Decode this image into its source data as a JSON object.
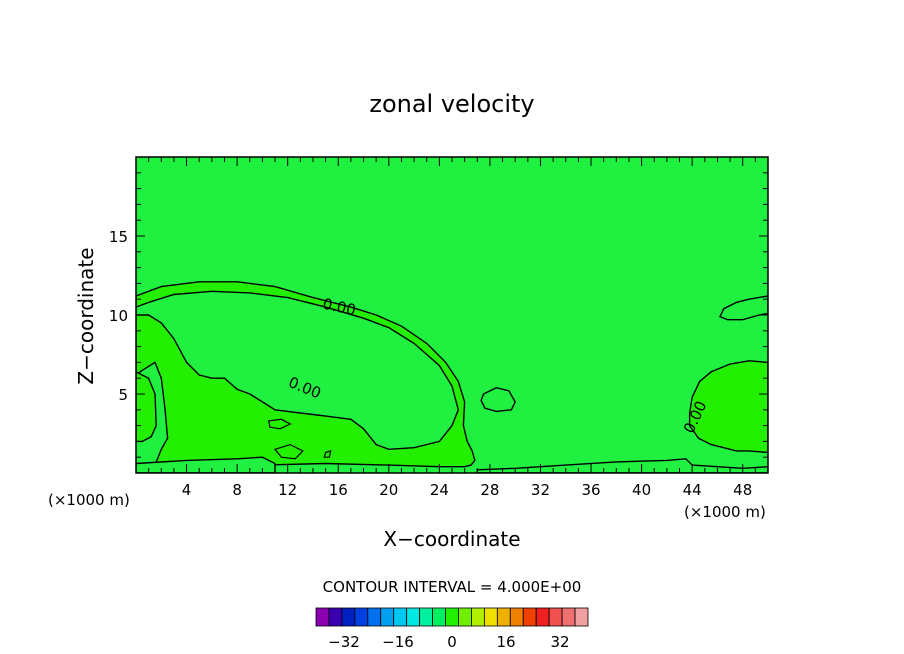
{
  "chart_data": {
    "type": "contour",
    "title": "zonal velocity",
    "xlabel": "X−coordinate",
    "ylabel": "Z−coordinate",
    "x_units": "(×1000 m)",
    "y_units": "(×1000 m)",
    "xlim": [
      0,
      50
    ],
    "ylim": [
      0,
      20
    ],
    "x_ticks": [
      4,
      8,
      12,
      16,
      20,
      24,
      28,
      32,
      36,
      40,
      44,
      48
    ],
    "y_ticks": [
      5,
      10,
      15
    ],
    "contour_label": "0.00",
    "contour_interval_text": "CONTOUR INTERVAL = 4.000E+00",
    "colorbar": {
      "colors": [
        "#8a00b0",
        "#3a00b0",
        "#0020c0",
        "#0040e0",
        "#0070f0",
        "#00a0f0",
        "#00c8f0",
        "#00e8e0",
        "#00f0a0",
        "#00f060",
        "#20f000",
        "#70f000",
        "#b0f000",
        "#f0e000",
        "#f0b000",
        "#f08000",
        "#f04000",
        "#f02020",
        "#f05050",
        "#f07070",
        "#f0a0a0"
      ],
      "labels": [
        "−32",
        "−16",
        "0",
        "16",
        "32"
      ]
    },
    "background_color": "#20f040",
    "region_color": "#22f000",
    "regions": [
      {
        "name": "main-lobe",
        "points": [
          [
            0,
            11.2
          ],
          [
            2,
            11.8
          ],
          [
            5,
            12.1
          ],
          [
            8,
            12.1
          ],
          [
            11,
            11.8
          ],
          [
            14,
            11.1
          ],
          [
            17,
            10.5
          ],
          [
            19,
            10
          ],
          [
            21,
            9.3
          ],
          [
            23,
            8.2
          ],
          [
            24.5,
            7
          ],
          [
            25.5,
            5.8
          ],
          [
            26,
            4.5
          ],
          [
            25.9,
            3
          ],
          [
            26.2,
            2
          ],
          [
            26.6,
            1.4
          ],
          [
            26.8,
            0.8
          ],
          [
            26.5,
            0.5
          ],
          [
            26,
            0.4
          ],
          [
            24,
            0.4
          ],
          [
            20,
            0.5
          ],
          [
            15,
            0.6
          ],
          [
            10,
            0.5
          ],
          [
            4,
            0.4
          ],
          [
            2,
            0.4
          ],
          [
            1.5,
            0.5
          ],
          [
            2,
            1.5
          ],
          [
            2.5,
            2.2
          ],
          [
            2.3,
            4
          ],
          [
            2,
            6
          ],
          [
            1.5,
            7
          ],
          [
            0.5,
            6.5
          ],
          [
            0,
            6.2
          ]
        ]
      },
      {
        "name": "inner-pocket",
        "points": [
          [
            0,
            10
          ],
          [
            1,
            10
          ],
          [
            2,
            9.5
          ],
          [
            3,
            8.5
          ],
          [
            4,
            7
          ],
          [
            5,
            6.2
          ],
          [
            6,
            6
          ],
          [
            7,
            6
          ],
          [
            8,
            5.3
          ],
          [
            9,
            5
          ],
          [
            10,
            4.5
          ],
          [
            11,
            4
          ],
          [
            12,
            3.9
          ],
          [
            13,
            3.8
          ],
          [
            14,
            3.7
          ],
          [
            15,
            3.6
          ],
          [
            16,
            3.5
          ],
          [
            17,
            3.4
          ],
          [
            18,
            2.8
          ],
          [
            19,
            1.8
          ],
          [
            20,
            1.5
          ],
          [
            22,
            1.6
          ],
          [
            24,
            2
          ],
          [
            25,
            3
          ],
          [
            25.5,
            4
          ],
          [
            25,
            5.5
          ],
          [
            24,
            6.8
          ],
          [
            22,
            8.2
          ],
          [
            20,
            9.2
          ],
          [
            18,
            9.8
          ],
          [
            15,
            10.5
          ],
          [
            12,
            11.1
          ],
          [
            9,
            11.4
          ],
          [
            6,
            11.5
          ],
          [
            3,
            11.3
          ],
          [
            1,
            10.8
          ],
          [
            0,
            10.5
          ]
        ]
      },
      {
        "name": "left-edge",
        "points": [
          [
            0,
            6.4
          ],
          [
            1,
            6
          ],
          [
            1.5,
            5
          ],
          [
            1.6,
            3
          ],
          [
            1.2,
            2.3
          ],
          [
            0.5,
            2
          ],
          [
            0,
            2
          ]
        ]
      },
      {
        "name": "center-blob",
        "points": [
          [
            27.5,
            5
          ],
          [
            28.5,
            5.4
          ],
          [
            29.5,
            5.2
          ],
          [
            30,
            4.5
          ],
          [
            29.7,
            4
          ],
          [
            28.5,
            3.9
          ],
          [
            27.6,
            4.1
          ],
          [
            27.3,
            4.6
          ]
        ]
      },
      {
        "name": "right-dome",
        "points": [
          [
            50,
            7
          ],
          [
            48.5,
            7.1
          ],
          [
            47,
            6.9
          ],
          [
            45.5,
            6.4
          ],
          [
            44.6,
            5.8
          ],
          [
            44,
            4.8
          ],
          [
            43.8,
            3.8
          ],
          [
            43.8,
            3
          ],
          [
            44.5,
            2.2
          ],
          [
            45.5,
            1.8
          ],
          [
            46.5,
            1.6
          ],
          [
            47.5,
            1.4
          ],
          [
            48.5,
            1.4
          ],
          [
            50,
            1.3
          ]
        ]
      },
      {
        "name": "right-top-blob",
        "points": [
          [
            50,
            11.2
          ],
          [
            48.5,
            11
          ],
          [
            47.5,
            10.8
          ],
          [
            46.5,
            10.4
          ],
          [
            46.2,
            9.9
          ],
          [
            46.8,
            9.7
          ],
          [
            48,
            9.7
          ],
          [
            49.3,
            10
          ],
          [
            50,
            10.1
          ]
        ]
      },
      {
        "name": "bottom-strip",
        "points": [
          [
            27,
            0.2
          ],
          [
            30,
            0.3
          ],
          [
            34,
            0.5
          ],
          [
            38,
            0.7
          ],
          [
            42,
            0.8
          ],
          [
            43.5,
            0.9
          ],
          [
            44,
            0.5
          ],
          [
            46,
            0.4
          ],
          [
            48,
            0.3
          ],
          [
            50,
            0.4
          ],
          [
            50,
            0
          ],
          [
            27,
            0
          ]
        ]
      },
      {
        "name": "bottom-left-strip",
        "points": [
          [
            0,
            0.6
          ],
          [
            4,
            0.8
          ],
          [
            8,
            0.9
          ],
          [
            10,
            1
          ],
          [
            11,
            0.6
          ],
          [
            11,
            0
          ],
          [
            0,
            0
          ]
        ]
      }
    ],
    "small_blobs": [
      [
        [
          10.5,
          3.3
        ],
        [
          11.5,
          3.4
        ],
        [
          12.2,
          3.1
        ],
        [
          11.4,
          2.8
        ],
        [
          10.6,
          2.9
        ]
      ],
      [
        [
          15,
          1.3
        ],
        [
          15.4,
          1.4
        ],
        [
          15.3,
          1
        ],
        [
          14.9,
          1
        ]
      ],
      [
        [
          11,
          1.5
        ],
        [
          12.2,
          1.8
        ],
        [
          13.2,
          1.4
        ],
        [
          12.6,
          0.9
        ],
        [
          11.5,
          1
        ]
      ]
    ],
    "label_positions": [
      {
        "x": 16,
        "y": 10.2,
        "angle": 12
      },
      {
        "x": 13.2,
        "y": 5.1,
        "angle": 22
      },
      {
        "x": 44.6,
        "y": 3.4,
        "angle": -65
      }
    ]
  }
}
